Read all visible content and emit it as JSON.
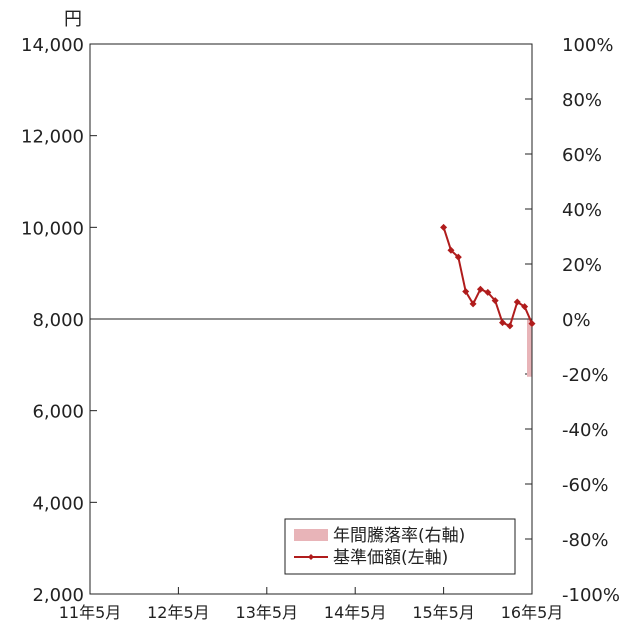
{
  "chart_data": {
    "type": "line",
    "yunit_left": "円",
    "left_axis": {
      "ylim": [
        2000,
        14000
      ],
      "ticks": [
        "2,000",
        "4,000",
        "6,000",
        "8,000",
        "10,000",
        "12,000",
        "14,000"
      ]
    },
    "right_axis": {
      "ylim": [
        -100,
        100
      ],
      "ticks": [
        "-100%",
        "-80%",
        "-60%",
        "-40%",
        "-20%",
        "0%",
        "20%",
        "40%",
        "60%",
        "80%",
        "100%"
      ]
    },
    "categories": [
      "11年5月",
      "12年5月",
      "13年5月",
      "14年5月",
      "15年5月",
      "16年5月"
    ],
    "legend": {
      "placement": "bottom-right"
    },
    "series": [
      {
        "name": "年間騰落率(右軸)",
        "kind": "bar",
        "axis": "right",
        "color": "#e8b4b8",
        "points": [
          {
            "x": "16年5月",
            "y": -21
          }
        ]
      },
      {
        "name": "基準価額(左軸)",
        "kind": "line",
        "axis": "left",
        "color": "#b01c1c",
        "points": [
          {
            "x": "15年5月",
            "y": 10000
          },
          {
            "x": "15年6月",
            "y": 9500
          },
          {
            "x": "15年7月",
            "y": 9350
          },
          {
            "x": "15年8月",
            "y": 8600
          },
          {
            "x": "15年9月",
            "y": 8330
          },
          {
            "x": "15年10月",
            "y": 8650
          },
          {
            "x": "15年11月",
            "y": 8580
          },
          {
            "x": "15年12月",
            "y": 8400
          },
          {
            "x": "16年1月",
            "y": 7920
          },
          {
            "x": "16年2月",
            "y": 7850
          },
          {
            "x": "16年3月",
            "y": 8370
          },
          {
            "x": "16年4月",
            "y": 8270
          },
          {
            "x": "16年5月",
            "y": 7900
          }
        ]
      }
    ]
  }
}
